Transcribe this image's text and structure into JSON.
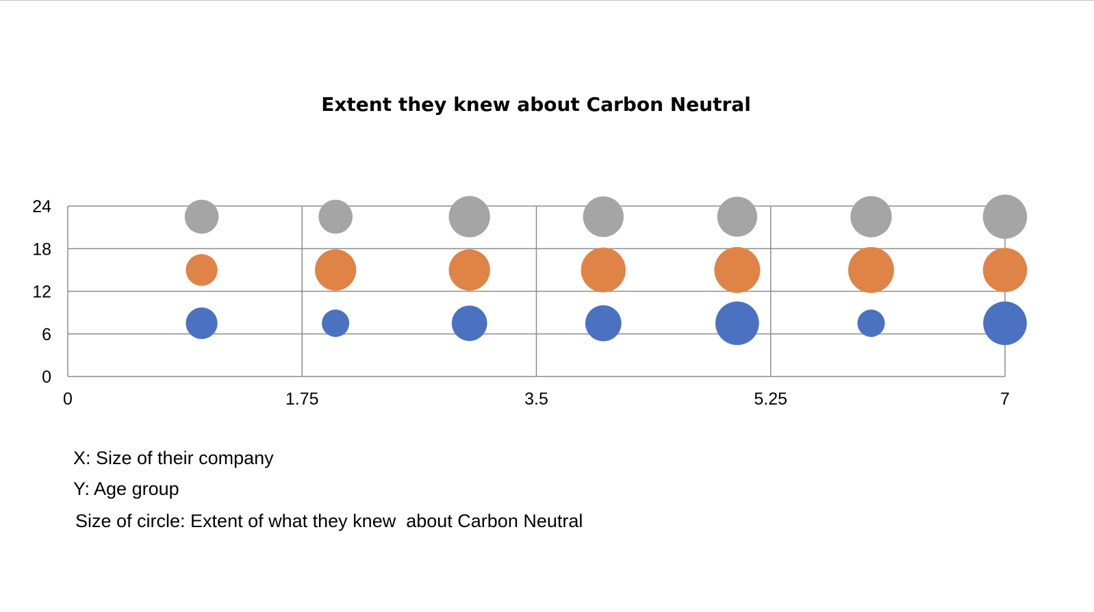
{
  "chart_data": {
    "type": "bubble",
    "title": "Extent they knew about Carbon Neutral",
    "xlabel": "",
    "ylabel": "",
    "xlim": [
      0,
      7
    ],
    "ylim": [
      0,
      24
    ],
    "x_ticks": [
      "0",
      "1.75",
      "3.5",
      "5.25",
      "7"
    ],
    "y_ticks": [
      "0",
      "6",
      "12",
      "18",
      "24"
    ],
    "grid": true,
    "legend": "none",
    "series": [
      {
        "color": "#4a72c1",
        "points": [
          {
            "x": 1,
            "y": 7.5,
            "size": 2
          },
          {
            "x": 2,
            "y": 7.5,
            "size": 1.5
          },
          {
            "x": 3,
            "y": 7.5,
            "size": 2.5
          },
          {
            "x": 4,
            "y": 7.5,
            "size": 2.6
          },
          {
            "x": 5,
            "y": 7.5,
            "size": 3.8
          },
          {
            "x": 6,
            "y": 7.5,
            "size": 1.5
          },
          {
            "x": 7,
            "y": 7.5,
            "size": 3.8
          }
        ]
      },
      {
        "color": "#e08346",
        "points": [
          {
            "x": 1,
            "y": 15,
            "size": 2
          },
          {
            "x": 2,
            "y": 15,
            "size": 3.4
          },
          {
            "x": 3,
            "y": 15,
            "size": 3.4
          },
          {
            "x": 4,
            "y": 15,
            "size": 4
          },
          {
            "x": 5,
            "y": 15,
            "size": 4.2
          },
          {
            "x": 6,
            "y": 15,
            "size": 4.2
          },
          {
            "x": 7,
            "y": 15,
            "size": 3.9
          }
        ]
      },
      {
        "color": "#a5a5a5",
        "points": [
          {
            "x": 1,
            "y": 22.5,
            "size": 2.3
          },
          {
            "x": 2,
            "y": 22.5,
            "size": 2.3
          },
          {
            "x": 3,
            "y": 22.5,
            "size": 3.4
          },
          {
            "x": 4,
            "y": 22.5,
            "size": 3.3
          },
          {
            "x": 5,
            "y": 22.5,
            "size": 3.2
          },
          {
            "x": 6,
            "y": 22.5,
            "size": 3.4
          },
          {
            "x": 7,
            "y": 22.5,
            "size": 3.9
          }
        ]
      }
    ]
  },
  "notes": {
    "x_note": "X: Size of their company",
    "y_note": "Y: Age group",
    "size_note": "Size of circle: Extent of what they knew  about Carbon Neutral"
  }
}
